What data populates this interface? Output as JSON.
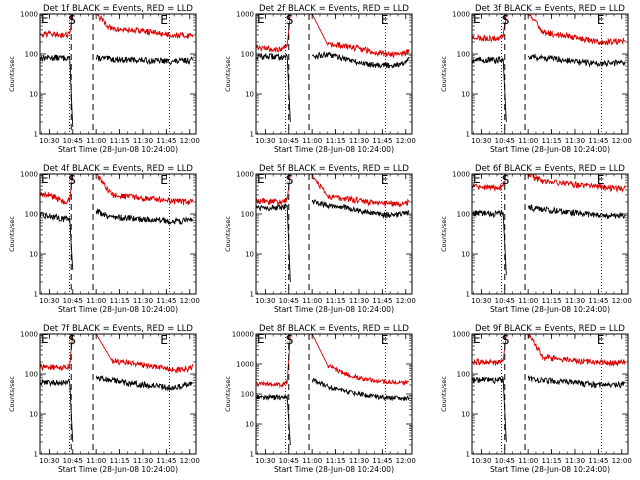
{
  "x_tick_labels": [
    "10:30",
    "10:45",
    "11:00",
    "11:15",
    "11:30",
    "11:45",
    "12:00"
  ],
  "y_tick_labels": [
    "1",
    "10",
    "100",
    "1000",
    "10000"
  ],
  "xlabel": "Start Time (28-Jun-08 10:24:00)",
  "ylabel": "Counts/sec",
  "markers": {
    "s": "S",
    "e": "E"
  },
  "colors": {
    "events": "#000000",
    "lld": "#dd0000"
  },
  "chart_data": [
    {
      "type": "line",
      "title": "Det 1f BLACK = Events, RED = LLD",
      "ylim": [
        1,
        1000
      ],
      "yscale": "log",
      "xlim": [
        "10:24",
        "12:04"
      ],
      "start_time": "10:44",
      "end_time": "11:47",
      "s_marker_time": "10:44",
      "e_marker_time": "11:43",
      "series": [
        {
          "name": "Events",
          "color": "#000000",
          "x": [
            "10:24",
            "10:30",
            "10:40",
            "10:43",
            "10:45",
            "10:58",
            "11:00",
            "11:10",
            "11:20",
            "11:30",
            "11:40",
            "11:50",
            "12:00",
            "12:02"
          ],
          "y": [
            80,
            82,
            80,
            85,
            1.5,
            null,
            80,
            75,
            72,
            70,
            68,
            65,
            70,
            72
          ]
        },
        {
          "name": "LLD",
          "color": "#dd0000",
          "x": [
            "10:24",
            "10:30",
            "10:40",
            "10:43",
            "10:45",
            "10:58",
            "11:00",
            "11:10",
            "11:20",
            "11:30",
            "11:40",
            "11:50",
            "12:00",
            "12:02"
          ],
          "y": [
            330,
            320,
            300,
            330,
            1000,
            null,
            1000,
            420,
            400,
            380,
            330,
            300,
            290,
            300
          ]
        }
      ]
    },
    {
      "type": "line",
      "title": "Det 2f BLACK = Events, RED = LLD",
      "ylim": [
        1,
        1000
      ],
      "yscale": "log",
      "xlim": [
        "10:24",
        "12:04"
      ],
      "start_time": "10:45",
      "end_time": "11:47",
      "s_marker_time": "10:45",
      "e_marker_time": "11:46",
      "series": [
        {
          "name": "Events",
          "color": "#000000",
          "x": [
            "10:24",
            "10:30",
            "10:40",
            "10:44",
            "10:46",
            "10:58",
            "11:00",
            "11:10",
            "11:20",
            "11:30",
            "11:40",
            "11:50",
            "12:00",
            "12:02"
          ],
          "y": [
            85,
            88,
            85,
            90,
            2,
            null,
            90,
            95,
            80,
            60,
            55,
            52,
            60,
            80
          ]
        },
        {
          "name": "LLD",
          "color": "#dd0000",
          "x": [
            "10:24",
            "10:30",
            "10:40",
            "10:44",
            "10:46",
            "10:58",
            "11:00",
            "11:10",
            "11:20",
            "11:30",
            "11:40",
            "11:50",
            "12:00",
            "12:02"
          ],
          "y": [
            140,
            140,
            130,
            160,
            1000,
            null,
            1000,
            170,
            160,
            140,
            110,
            100,
            105,
            130
          ]
        }
      ]
    },
    {
      "type": "line",
      "title": "Det 3f BLACK = Events, RED = LLD",
      "ylim": [
        1,
        1000
      ],
      "yscale": "log",
      "xlim": [
        "10:24",
        "12:04"
      ],
      "start_time": "10:45",
      "end_time": "11:47",
      "s_marker_time": "10:45",
      "e_marker_time": "11:46",
      "series": [
        {
          "name": "Events",
          "color": "#000000",
          "x": [
            "10:24",
            "10:30",
            "10:40",
            "10:44",
            "10:46",
            "10:58",
            "11:00",
            "11:10",
            "11:20",
            "11:30",
            "11:40",
            "11:50",
            "12:00",
            "12:02"
          ],
          "y": [
            70,
            72,
            70,
            75,
            2,
            null,
            90,
            80,
            75,
            65,
            60,
            58,
            62,
            65
          ]
        },
        {
          "name": "LLD",
          "color": "#dd0000",
          "x": [
            "10:24",
            "10:30",
            "10:40",
            "10:44",
            "10:46",
            "10:58",
            "11:00",
            "11:10",
            "11:20",
            "11:30",
            "11:40",
            "11:50",
            "12:00",
            "12:02"
          ],
          "y": [
            260,
            250,
            250,
            270,
            1000,
            null,
            1000,
            350,
            300,
            270,
            220,
            200,
            210,
            220
          ]
        }
      ]
    },
    {
      "type": "line",
      "title": "Det 4f BLACK = Events, RED = LLD",
      "ylim": [
        1,
        1000
      ],
      "yscale": "log",
      "xlim": [
        "10:24",
        "12:04"
      ],
      "start_time": "10:44",
      "end_time": "11:47",
      "s_marker_time": "10:44",
      "e_marker_time": "11:43",
      "series": [
        {
          "name": "Events",
          "color": "#000000",
          "x": [
            "10:24",
            "10:30",
            "10:40",
            "10:43",
            "10:45",
            "10:58",
            "11:00",
            "11:10",
            "11:20",
            "11:30",
            "11:40",
            "11:50",
            "12:00",
            "12:02"
          ],
          "y": [
            95,
            90,
            75,
            80,
            4,
            null,
            120,
            85,
            80,
            75,
            70,
            65,
            70,
            72
          ]
        },
        {
          "name": "LLD",
          "color": "#dd0000",
          "x": [
            "10:24",
            "10:30",
            "10:40",
            "10:43",
            "10:45",
            "10:58",
            "11:00",
            "11:10",
            "11:20",
            "11:30",
            "11:40",
            "11:50",
            "12:00",
            "12:02"
          ],
          "y": [
            350,
            300,
            200,
            220,
            1000,
            null,
            1000,
            300,
            270,
            250,
            230,
            210,
            200,
            210
          ]
        }
      ]
    },
    {
      "type": "line",
      "title": "Det 5f BLACK = Events, RED = LLD",
      "ylim": [
        1,
        1000
      ],
      "yscale": "log",
      "xlim": [
        "10:24",
        "12:04"
      ],
      "start_time": "10:45",
      "end_time": "11:47",
      "s_marker_time": "10:45",
      "e_marker_time": "11:46",
      "series": [
        {
          "name": "Events",
          "color": "#000000",
          "x": [
            "10:24",
            "10:30",
            "10:40",
            "10:44",
            "10:46",
            "10:58",
            "11:00",
            "11:10",
            "11:20",
            "11:30",
            "11:40",
            "11:50",
            "12:00",
            "12:02"
          ],
          "y": [
            150,
            150,
            140,
            160,
            2,
            null,
            200,
            170,
            150,
            120,
            100,
            95,
            100,
            110
          ]
        },
        {
          "name": "LLD",
          "color": "#dd0000",
          "x": [
            "10:24",
            "10:30",
            "10:40",
            "10:44",
            "10:46",
            "10:58",
            "11:00",
            "11:10",
            "11:20",
            "11:30",
            "11:40",
            "11:50",
            "12:00",
            "12:02"
          ],
          "y": [
            210,
            210,
            200,
            230,
            1000,
            null,
            1000,
            280,
            250,
            220,
            190,
            180,
            180,
            200
          ]
        }
      ]
    },
    {
      "type": "line",
      "title": "Det 6f BLACK = Events, RED = LLD",
      "ylim": [
        1,
        1000
      ],
      "yscale": "log",
      "xlim": [
        "10:24",
        "12:04"
      ],
      "start_time": "10:45",
      "end_time": "11:47",
      "s_marker_time": "10:45",
      "e_marker_time": "11:46",
      "series": [
        {
          "name": "Events",
          "color": "#000000",
          "x": [
            "10:24",
            "10:30",
            "10:40",
            "10:44",
            "10:46",
            "10:58",
            "11:00",
            "11:10",
            "11:20",
            "11:30",
            "11:40",
            "11:50",
            "12:00",
            "12:02"
          ],
          "y": [
            105,
            105,
            100,
            110,
            3,
            null,
            150,
            130,
            120,
            110,
            95,
            90,
            92,
            95
          ]
        },
        {
          "name": "LLD",
          "color": "#dd0000",
          "x": [
            "10:24",
            "10:30",
            "10:40",
            "10:44",
            "10:46",
            "10:58",
            "11:00",
            "11:10",
            "11:20",
            "11:30",
            "11:40",
            "11:50",
            "12:00",
            "12:02"
          ],
          "y": [
            480,
            470,
            460,
            500,
            1000,
            null,
            1000,
            650,
            600,
            550,
            500,
            460,
            440,
            450
          ]
        }
      ]
    },
    {
      "type": "line",
      "title": "Det 7f BLACK = Events, RED = LLD",
      "ylim": [
        1,
        1000
      ],
      "yscale": "log",
      "xlim": [
        "10:24",
        "12:04"
      ],
      "start_time": "10:44",
      "end_time": "11:47",
      "s_marker_time": "10:44",
      "e_marker_time": "11:43",
      "series": [
        {
          "name": "Events",
          "color": "#000000",
          "x": [
            "10:24",
            "10:30",
            "10:40",
            "10:43",
            "10:45",
            "10:58",
            "11:00",
            "11:10",
            "11:20",
            "11:30",
            "11:40",
            "11:50",
            "12:00",
            "12:02"
          ],
          "y": [
            60,
            62,
            60,
            65,
            2,
            null,
            80,
            70,
            60,
            55,
            50,
            45,
            55,
            60
          ]
        },
        {
          "name": "LLD",
          "color": "#dd0000",
          "x": [
            "10:24",
            "10:30",
            "10:40",
            "10:43",
            "10:45",
            "10:58",
            "11:00",
            "11:10",
            "11:20",
            "11:30",
            "11:40",
            "11:50",
            "12:00",
            "12:02"
          ],
          "y": [
            150,
            150,
            140,
            160,
            1000,
            null,
            1000,
            220,
            190,
            170,
            150,
            130,
            140,
            160
          ]
        }
      ]
    },
    {
      "type": "line",
      "title": "Det 8f BLACK = Events, RED = LLD",
      "ylim": [
        1,
        10000
      ],
      "yscale": "log",
      "xlim": [
        "10:24",
        "12:04"
      ],
      "start_time": "10:45",
      "end_time": "11:47",
      "s_marker_time": "10:45",
      "e_marker_time": "11:46",
      "series": [
        {
          "name": "Events",
          "color": "#000000",
          "x": [
            "10:24",
            "10:30",
            "10:40",
            "10:44",
            "10:46",
            "10:58",
            "11:00",
            "11:10",
            "11:20",
            "11:30",
            "11:40",
            "11:50",
            "12:00",
            "12:02"
          ],
          "y": [
            80,
            80,
            75,
            85,
            2,
            null,
            300,
            180,
            130,
            100,
            85,
            75,
            70,
            75
          ]
        },
        {
          "name": "LLD",
          "color": "#dd0000",
          "x": [
            "10:24",
            "10:30",
            "10:40",
            "10:44",
            "10:46",
            "10:58",
            "11:00",
            "11:10",
            "11:20",
            "11:30",
            "11:40",
            "11:50",
            "12:00",
            "12:02"
          ],
          "y": [
            220,
            220,
            200,
            250,
            10000,
            null,
            10000,
            900,
            500,
            350,
            280,
            250,
            240,
            260
          ]
        }
      ]
    },
    {
      "type": "line",
      "title": "Det 9f BLACK = Events, RED = LLD",
      "ylim": [
        1,
        1000
      ],
      "yscale": "log",
      "xlim": [
        "10:24",
        "12:04"
      ],
      "start_time": "10:45",
      "end_time": "11:47",
      "s_marker_time": "10:45",
      "e_marker_time": "11:46",
      "series": [
        {
          "name": "Events",
          "color": "#000000",
          "x": [
            "10:24",
            "10:30",
            "10:40",
            "10:44",
            "10:46",
            "10:58",
            "11:00",
            "11:10",
            "11:20",
            "11:30",
            "11:40",
            "11:50",
            "12:00",
            "12:02"
          ],
          "y": [
            70,
            72,
            70,
            75,
            2,
            null,
            80,
            70,
            65,
            60,
            55,
            52,
            55,
            60
          ]
        },
        {
          "name": "LLD",
          "color": "#dd0000",
          "x": [
            "10:24",
            "10:30",
            "10:40",
            "10:44",
            "10:46",
            "10:58",
            "11:00",
            "11:10",
            "11:20",
            "11:30",
            "11:40",
            "11:50",
            "12:00",
            "12:02"
          ],
          "y": [
            200,
            200,
            190,
            210,
            1000,
            null,
            1000,
            260,
            240,
            220,
            200,
            190,
            200,
            210
          ]
        }
      ]
    }
  ]
}
